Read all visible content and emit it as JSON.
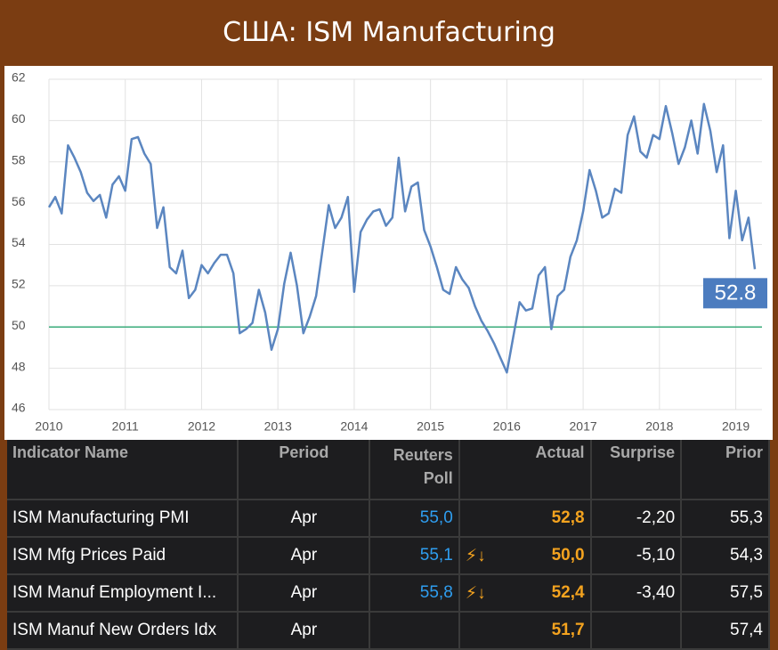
{
  "header": {
    "title": "США: ISM Manufacturing"
  },
  "chart_data": {
    "type": "line",
    "values": [
      55.8,
      56.3,
      55.5,
      58.8,
      58.2,
      57.5,
      56.5,
      56.1,
      56.4,
      55.3,
      56.9,
      57.3,
      56.6,
      59.1,
      59.2,
      58.4,
      57.9,
      54.8,
      55.8,
      52.9,
      52.6,
      53.7,
      51.4,
      51.8,
      53.0,
      52.6,
      53.1,
      53.5,
      53.5,
      52.6,
      49.7,
      49.9,
      50.2,
      51.8,
      50.7,
      48.9,
      49.9,
      52.1,
      53.6,
      52.0,
      49.7,
      50.5,
      51.5,
      53.7,
      55.9,
      54.8,
      55.3,
      56.3,
      51.7,
      54.6,
      55.2,
      55.6,
      55.7,
      54.9,
      55.3,
      58.2,
      55.6,
      56.8,
      57.0,
      54.7,
      53.9,
      52.9,
      51.8,
      51.6,
      52.9,
      52.3,
      51.9,
      51.0,
      50.3,
      49.8,
      49.2,
      48.5,
      47.8,
      49.5,
      51.2,
      50.8,
      50.9,
      52.5,
      52.9,
      49.9,
      51.5,
      51.8,
      53.4,
      54.2,
      55.6,
      57.6,
      56.6,
      55.3,
      55.5,
      56.7,
      56.5,
      59.3,
      60.2,
      58.5,
      58.2,
      59.3,
      59.1,
      60.7,
      59.4,
      57.9,
      58.7,
      60.0,
      58.4,
      60.8,
      59.5,
      57.5,
      58.8,
      54.3,
      56.6,
      54.2,
      55.3,
      52.8
    ],
    "color": "#5b86c0",
    "xlim": [
      2010,
      2019.25
    ],
    "xticks": [
      2010,
      2011,
      2012,
      2013,
      2014,
      2015,
      2016,
      2017,
      2018,
      2019
    ],
    "ylim": [
      46,
      62
    ],
    "yticks": [
      46,
      48,
      50,
      52,
      54,
      56,
      58,
      60,
      62
    ],
    "grid": true,
    "hline": 50,
    "hline_color": "#3aab7a",
    "last_label_color": "#4c7cbf"
  },
  "table": {
    "header": [
      "Indicator Name",
      "Period",
      "Reuters Poll",
      "Actual",
      "Surprise",
      "Prior"
    ],
    "rows": [
      [
        "ISM Manufacturing PMI",
        "Apr",
        "55,0",
        "52,8",
        "-2,20",
        "55,3"
      ],
      [
        "ISM Mfg Prices Paid",
        "Apr",
        "55,1",
        "50,0",
        "-5,10",
        "54,3"
      ],
      [
        "ISM Manuf Employment I...",
        "Apr",
        "55,8",
        "52,4",
        "-3,40",
        "57,5"
      ],
      [
        "ISM Manuf New Orders Idx",
        "Apr",
        "",
        "51,7",
        "",
        "57,4"
      ]
    ]
  }
}
